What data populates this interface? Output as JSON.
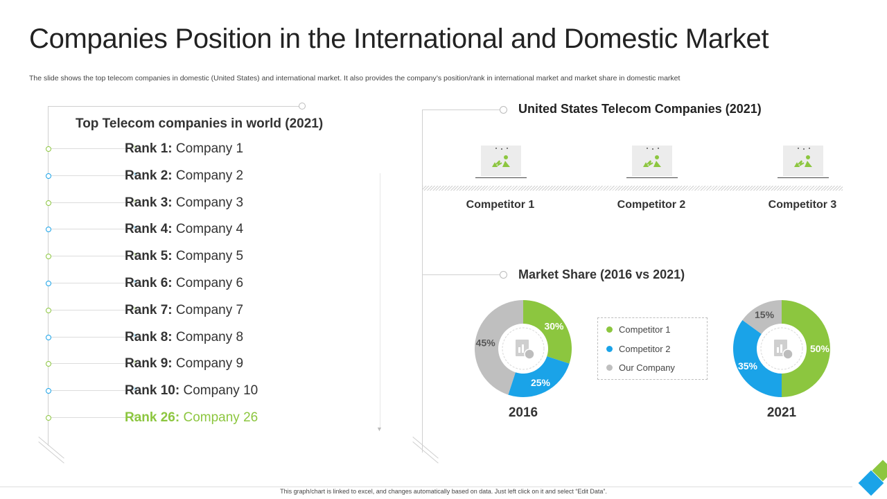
{
  "title": "Companies Position in the International and Domestic Market",
  "subtitle": "The slide shows the top telecom companies in domestic (United States) and international market. It also provides the company’s position/rank in international market and market share in domestic market",
  "world": {
    "heading": "Top Telecom companies in world (2021)",
    "ranks": [
      {
        "rank": "Rank 1:",
        "company": "Company 1"
      },
      {
        "rank": "Rank 2:",
        "company": "Company 2"
      },
      {
        "rank": "Rank 3:",
        "company": "Company 3"
      },
      {
        "rank": "Rank 4:",
        "company": "Company 4"
      },
      {
        "rank": "Rank 5:",
        "company": "Company 5"
      },
      {
        "rank": "Rank 6:",
        "company": "Company 6"
      },
      {
        "rank": "Rank 7:",
        "company": "Company 7"
      },
      {
        "rank": "Rank 8:",
        "company": "Company 8"
      },
      {
        "rank": "Rank 9:",
        "company": "Company 9"
      },
      {
        "rank": "Rank 10:",
        "company": "Company 10"
      },
      {
        "rank": "Rank 26:",
        "company": "Company 26"
      }
    ]
  },
  "us": {
    "heading": "United States Telecom Companies (2021)",
    "competitors": [
      "Competitor 1",
      "Competitor 2",
      "Competitor 3"
    ]
  },
  "market_share": {
    "heading": "Market Share (2016 vs 2021)",
    "legend": [
      "Competitor  1",
      "Competitor  2",
      "Our Company"
    ]
  },
  "colors": {
    "competitor1": "#8cc63f",
    "competitor2": "#1aa3e8",
    "our_company": "#bfbfbf",
    "highlight": "#8cc63f"
  },
  "chart_data": [
    {
      "type": "pie",
      "title": "2016",
      "labels": [
        "Competitor  1",
        "Competitor  2",
        "Our Company"
      ],
      "values": [
        30,
        25,
        45
      ],
      "value_labels": [
        "30%",
        "25%",
        "45%"
      ]
    },
    {
      "type": "pie",
      "title": "2021",
      "labels": [
        "Competitor  1",
        "Competitor  2",
        "Our Company"
      ],
      "values": [
        50,
        35,
        15
      ],
      "value_labels": [
        "50%",
        "35%",
        "15%"
      ]
    }
  ],
  "footer": "This graph/chart is linked to excel, and changes automatically based on data. Just left click on it and select “Edit Data”."
}
